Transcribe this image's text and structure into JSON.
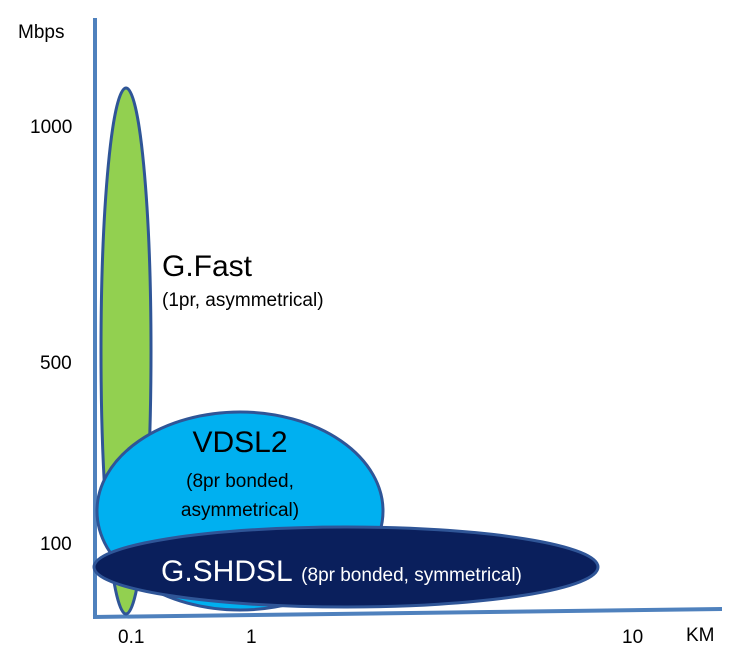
{
  "axes": {
    "y_unit": "Mbps",
    "x_unit": "KM",
    "y_ticks": [
      "1000",
      "500",
      "100"
    ],
    "x_ticks": [
      "0.1",
      "1",
      "10"
    ]
  },
  "technologies": {
    "gfast": {
      "name": "G.Fast",
      "detail": "(1pr, asymmetrical)",
      "color": "#92d050"
    },
    "vdsl2": {
      "name": "VDSL2",
      "detail_line1": "(8pr bonded,",
      "detail_line2": "asymmetrical)",
      "color": "#00b0f0"
    },
    "gshdsl": {
      "name": "G.SHDSL",
      "detail": "(8pr bonded, symmetrical)",
      "color": "#0a1f5c"
    }
  },
  "colors": {
    "axis": "#4f81bd",
    "outline": "#2f5597"
  }
}
